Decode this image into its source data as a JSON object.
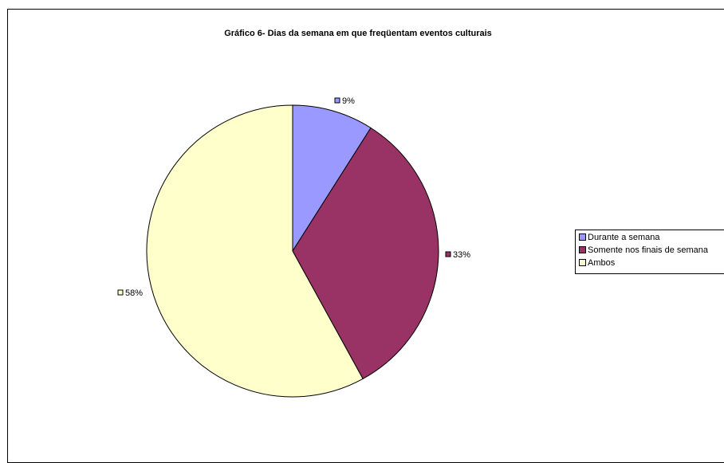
{
  "chart_data": {
    "type": "pie",
    "title": "Gráfico 6- Dias da semana em que freqüentam eventos culturais",
    "slices": [
      {
        "name": "Durante a semana",
        "value": 9,
        "label": "9%",
        "color": "#9999ff"
      },
      {
        "name": "Somente nos finais de semana",
        "value": 33,
        "label": "33%",
        "color": "#993366"
      },
      {
        "name": "Ambos",
        "value": 58,
        "label": "58%",
        "color": "#ffffcc"
      }
    ],
    "legend": {
      "placement": "right",
      "items": [
        "Durante a semana",
        "Somente nos finais de semana",
        "Ambos"
      ]
    }
  }
}
